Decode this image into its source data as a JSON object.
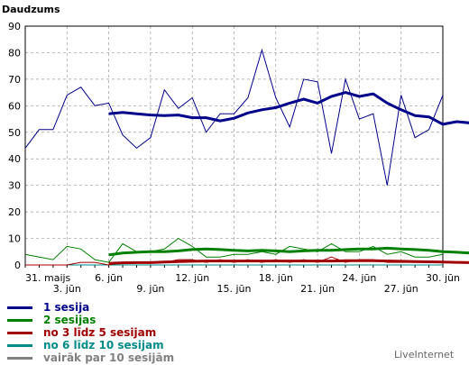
{
  "chart_data": {
    "type": "line",
    "title": "Daudzums",
    "ylim": [
      0,
      90
    ],
    "yticks": [
      0,
      10,
      20,
      30,
      40,
      50,
      60,
      70,
      80,
      90
    ],
    "grid": true,
    "legend_position": "bottom-left",
    "x": [
      "31. maijs",
      "1. jūn",
      "2. jūn",
      "3. jūn",
      "4. jūn",
      "5. jūn",
      "6. jūn",
      "7. jūn",
      "8. jūn",
      "9. jūn",
      "10. jūn",
      "11. jūn",
      "12. jūn",
      "13. jūn",
      "14. jūn",
      "15. jūn",
      "16. jūn",
      "17. jūn",
      "18. jūn",
      "19. jūn",
      "20. jūn",
      "21. jūn",
      "22. jūn",
      "23. jūn",
      "24. jūn",
      "25. jūn",
      "26. jūn",
      "27. jūn",
      "28. jūn",
      "29. jūn",
      "30. jūn"
    ],
    "xtick_labels": [
      {
        "index": 0,
        "label": "31. maijs"
      },
      {
        "index": 3,
        "label": "3. jūn"
      },
      {
        "index": 6,
        "label": "6. jūn"
      },
      {
        "index": 9,
        "label": "9. jūn"
      },
      {
        "index": 12,
        "label": "12. jūn"
      },
      {
        "index": 15,
        "label": "15. jūn"
      },
      {
        "index": 18,
        "label": "18. jūn"
      },
      {
        "index": 21,
        "label": "21. jūn"
      },
      {
        "index": 24,
        "label": "24. jūn"
      },
      {
        "index": 27,
        "label": "27. jūn"
      },
      {
        "index": 30,
        "label": "30. jūn"
      }
    ],
    "series": [
      {
        "name": "1 sesija",
        "color": "#00008b",
        "values": [
          44,
          51,
          51,
          64,
          67,
          60,
          61,
          49,
          44,
          48,
          66,
          59,
          63,
          50,
          57,
          57,
          63,
          81,
          63,
          52,
          70,
          69,
          42,
          70,
          55,
          57,
          30,
          64,
          48,
          51,
          64
        ]
      },
      {
        "name": "2 sesijas",
        "color": "#008000",
        "values": [
          4,
          3,
          2,
          7,
          6,
          2,
          1,
          8,
          5,
          5,
          6,
          10,
          7,
          3,
          3,
          4,
          4,
          5,
          4,
          7,
          6,
          5,
          8,
          5,
          5,
          7,
          4,
          5,
          3,
          3,
          4
        ]
      },
      {
        "name": "no 3 līdz 5 sesijam",
        "color": "#a00000",
        "values": [
          0,
          0,
          0,
          0,
          1,
          1,
          0,
          1,
          1,
          1,
          1,
          2,
          2,
          1,
          2,
          1,
          2,
          1,
          2,
          1,
          2,
          1,
          3,
          1,
          2,
          2,
          1,
          1,
          1,
          1,
          1
        ]
      },
      {
        "name": "no 6 līdz 10 sesijam",
        "color": "#008b8b",
        "values": [
          0,
          0,
          0,
          0,
          0,
          0,
          0,
          0,
          0,
          0,
          0,
          0,
          0,
          0,
          0,
          0,
          0,
          0,
          0,
          0,
          0,
          0,
          0,
          0,
          0,
          0,
          0,
          0,
          0,
          0,
          0
        ]
      },
      {
        "name": "vairāk par 10 sesijām",
        "color": "#808080",
        "values": [
          0,
          0,
          0,
          0,
          0,
          0,
          0,
          0,
          0,
          0,
          0,
          0,
          0,
          0,
          0,
          0,
          0,
          0,
          0,
          0,
          0,
          0,
          0,
          0,
          0,
          0,
          0,
          0,
          0,
          0,
          0
        ]
      }
    ],
    "trend_lines": [
      {
        "series": "1 sesija",
        "color": "#00008b",
        "start_index": 6,
        "values": [
          57,
          57.5,
          57,
          56.5,
          56.3,
          56.5,
          55.5,
          55.5,
          54.3,
          55.3,
          57.3,
          58.5,
          59.3,
          61,
          62.5,
          61,
          63.5,
          65,
          63.5,
          64.5,
          61,
          58.5,
          56.3,
          55.8,
          53,
          54,
          53.5
        ]
      },
      {
        "series": "2 sesijas",
        "color": "#008000",
        "start_index": 6,
        "values": [
          3.8,
          4.5,
          4.8,
          5.0,
          5.0,
          5.3,
          5.8,
          6.0,
          5.8,
          5.5,
          5.3,
          5.5,
          5.3,
          5.0,
          5.3,
          5.5,
          5.5,
          5.8,
          6.0,
          6.0,
          6.3,
          6.0,
          5.8,
          5.5,
          5.0,
          4.8,
          4.5
        ]
      },
      {
        "series": "no 3 līdz 5 sesijam",
        "color": "#a00000",
        "start_index": 6,
        "values": [
          0.6,
          0.8,
          0.9,
          0.9,
          1.1,
          1.3,
          1.4,
          1.5,
          1.5,
          1.5,
          1.5,
          1.5,
          1.5,
          1.5,
          1.5,
          1.5,
          1.5,
          1.6,
          1.6,
          1.6,
          1.5,
          1.4,
          1.3,
          1.2,
          1.1,
          1.0,
          0.9
        ]
      }
    ]
  },
  "brand": "LiveInternet"
}
